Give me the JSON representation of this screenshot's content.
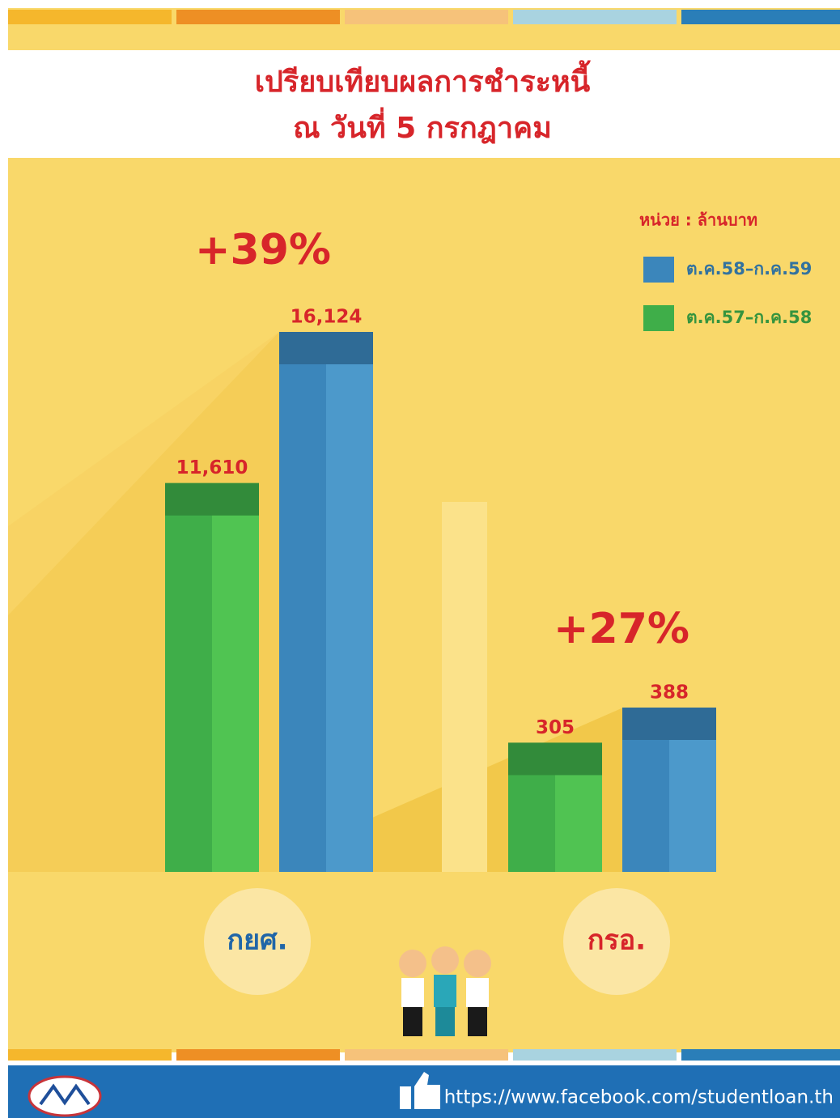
{
  "chart_data": {
    "type": "bar",
    "title": [
      "เปรียบเทียบผลการชำระหนี้",
      "ณ วันที่ 5 กรกฎาคม"
    ],
    "unit_label": "หน่วย : ล้านบาท",
    "categories": [
      "กยศ.",
      "กรอ."
    ],
    "category_colors": [
      "#2166a8",
      "#d7252a"
    ],
    "series": [
      {
        "name": "ต.ค.57–ก.ค.58",
        "color": "#3fae49",
        "values": [
          11610,
          305
        ],
        "value_labels": [
          "11,610",
          "305"
        ]
      },
      {
        "name": "ต.ค.58–ก.ค.59",
        "color": "#3b86bb",
        "values": [
          16124,
          388
        ],
        "value_labels": [
          "16,124",
          "388"
        ]
      }
    ],
    "annotations": [
      "+39%",
      "+27%"
    ],
    "footer_url": "https://www.facebook.com/studentloan.th"
  }
}
